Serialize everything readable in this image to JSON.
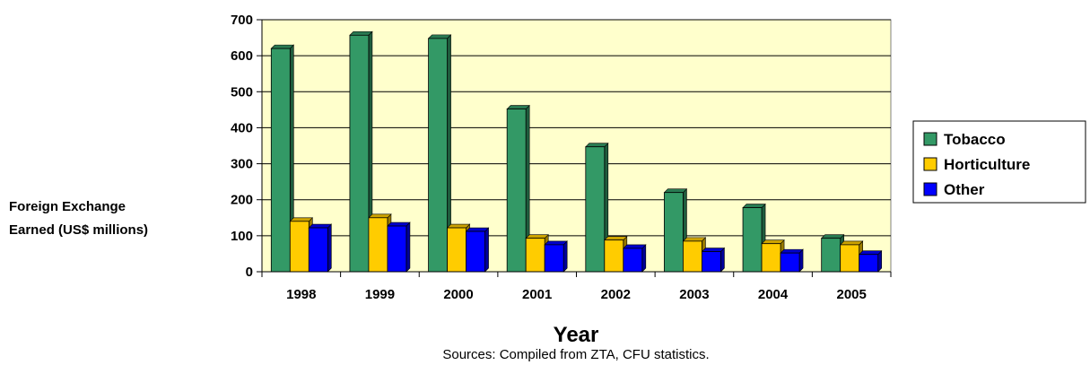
{
  "chart_data": {
    "type": "bar",
    "categories": [
      "1998",
      "1999",
      "2000",
      "2001",
      "2002",
      "2003",
      "2004",
      "2005"
    ],
    "series": [
      {
        "name": "Tobacco",
        "color": "#339966",
        "values": [
          620,
          657,
          648,
          452,
          347,
          220,
          178,
          93
        ]
      },
      {
        "name": "Horticulture",
        "color": "#ffcc00",
        "values": [
          140,
          150,
          122,
          93,
          88,
          85,
          78,
          75
        ]
      },
      {
        "name": "Other",
        "color": "#0000ff",
        "values": [
          122,
          127,
          112,
          75,
          65,
          56,
          52,
          48
        ]
      }
    ],
    "xlabel": "Year",
    "ylabel_line1": "Foreign Exchange",
    "ylabel_line2": "Earned (US$ millions)",
    "ylim": [
      0,
      700
    ],
    "yticks": [
      "0",
      "100",
      "200",
      "300",
      "400",
      "500",
      "600",
      "700"
    ],
    "source": "Sources: Compiled from ZTA, CFU statistics.",
    "plot_background": "#ffffcc",
    "grid": true,
    "legend_position": "right"
  }
}
